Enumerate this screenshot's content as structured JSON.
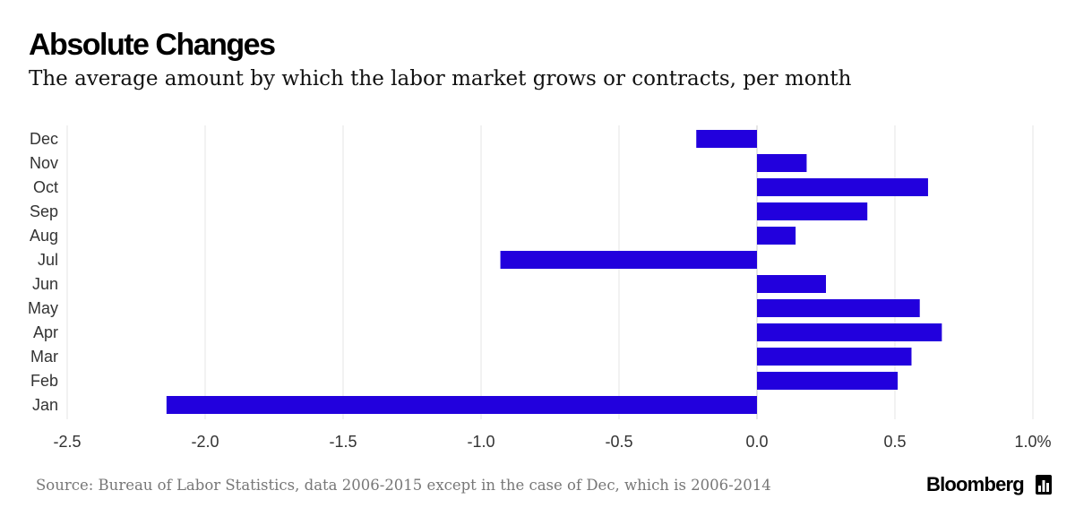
{
  "header": {
    "title": "Absolute Changes",
    "subtitle": "The average amount by which the labor market grows or contracts, per month"
  },
  "footer": {
    "source": "Source: Bureau of Labor Statistics, data 2006-2015 except in the case of Dec, which is 2006-2014",
    "brand": "Bloomberg",
    "brand_icon": "bloomberg-bars-icon"
  },
  "chart_data": {
    "type": "bar",
    "orientation": "horizontal",
    "categories": [
      "Dec",
      "Nov",
      "Oct",
      "Sep",
      "Aug",
      "Jul",
      "Jun",
      "May",
      "Apr",
      "Mar",
      "Feb",
      "Jan"
    ],
    "values": [
      -0.22,
      0.18,
      0.62,
      0.4,
      0.14,
      -0.93,
      0.25,
      0.59,
      0.67,
      0.56,
      0.51,
      -2.14
    ],
    "title": "Absolute Changes",
    "xlim": [
      -2.5,
      1.0
    ],
    "xticks": [
      -2.5,
      -2.0,
      -1.5,
      -1.0,
      -0.5,
      0.0,
      0.5,
      1.0
    ],
    "xtick_labels": [
      "-2.5",
      "-2.0",
      "-1.5",
      "-1.0",
      "-0.5",
      "0.0",
      "0.5",
      "1.0%"
    ],
    "xlabel": "",
    "ylabel": "",
    "grid": "vertical",
    "legend": "none",
    "bar_color": "#2200dd",
    "grid_color": "#e6e6e6",
    "zero_line_color": "#cccccc"
  }
}
